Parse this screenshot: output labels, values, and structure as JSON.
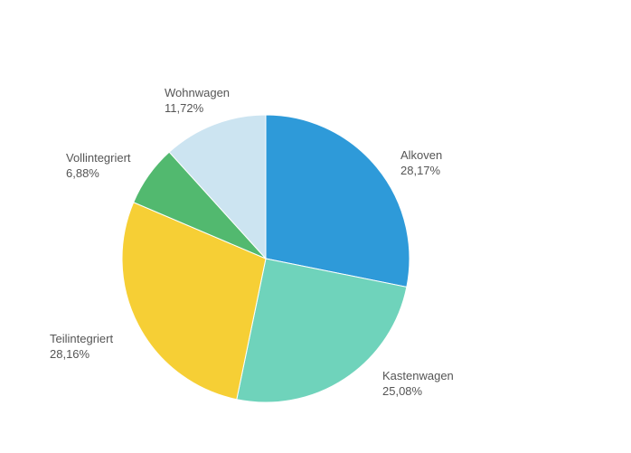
{
  "chart_data": {
    "type": "pie",
    "title": "",
    "start_angle_deg": 0,
    "direction": "clockwise",
    "legend": "none",
    "slices": [
      {
        "name": "Alkoven",
        "label": "28,17%",
        "value": 28.17,
        "color": "#2e9ad9"
      },
      {
        "name": "Kastenwagen",
        "label": "25,08%",
        "value": 25.08,
        "color": "#6fd3bb"
      },
      {
        "name": "Teilintegriert",
        "label": "28,16%",
        "value": 28.16,
        "color": "#f6cf35"
      },
      {
        "name": "Vollintegriert",
        "label": "6,88%",
        "value": 6.88,
        "color": "#52b96f"
      },
      {
        "name": "Wohnwagen",
        "label": "11,72%",
        "value": 11.72,
        "color": "#cce4f1"
      }
    ]
  }
}
